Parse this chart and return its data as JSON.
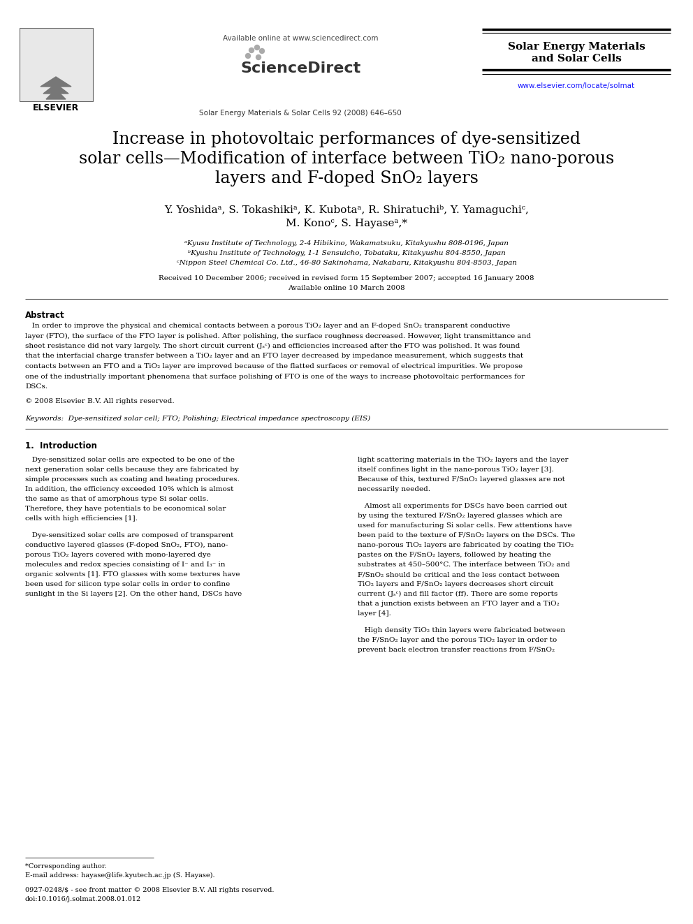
{
  "bg_color": "#ffffff",
  "header_available_text": "Available online at www.sciencedirect.com",
  "journal_title_line1": "Solar Energy Materials",
  "journal_title_line2": "and Solar Cells",
  "journal_info": "Solar Energy Materials & Solar Cells 92 (2008) 646–650",
  "elsevier_text": "ELSEVIER",
  "url_text": "www.elsevier.com/locate/solmat",
  "paper_title_line1": "Increase in photovoltaic performances of dye-sensitized",
  "paper_title_line2": "solar cells—Modification of interface between TiO₂ nano-porous",
  "paper_title_line3": "layers and F-doped SnO₂ layers",
  "authors": "Y. Yoshidaᵃ, S. Tokashikiᵃ, K. Kubotaᵃ, R. Shiratuchiᵇ, Y. Yamaguchiᶜ,",
  "authors2": "M. Konoᶜ, S. Hayaseᵃ,*",
  "affil_a": "ᵃKyusu Institute of Technology, 2-4 Hibikino, Wakamatsuku, Kitakyushu 808-0196, Japan",
  "affil_b": "ᵇKyushu Institute of Technology, 1-1 Sensuicho, Tobataku, Kitakyushu 804-8550, Japan",
  "affil_c": "ᶜNippon Steel Chemical Co. Ltd., 46-80 Sakinohama, Nakabaru, Kitakyushu 804-8503, Japan",
  "received_text": "Received 10 December 2006; received in revised form 15 September 2007; accepted 16 January 2008",
  "available_text": "Available online 10 March 2008",
  "abstract_title": "Abstract",
  "copyright_text": "© 2008 Elsevier B.V. All rights reserved.",
  "keywords_text": "Keywords:  Dye-sensitized solar cell; FTO; Polishing; Electrical impedance spectroscopy (EIS)",
  "intro_title": "1.  Introduction",
  "footnote1": "*Corresponding author.",
  "footnote2": "E-mail address: hayase@life.kyutech.ac.jp (S. Hayase).",
  "footnote3": "0927-0248/$ - see front matter © 2008 Elsevier B.V. All rights reserved.",
  "footnote4": "doi:10.1016/j.solmat.2008.01.012"
}
